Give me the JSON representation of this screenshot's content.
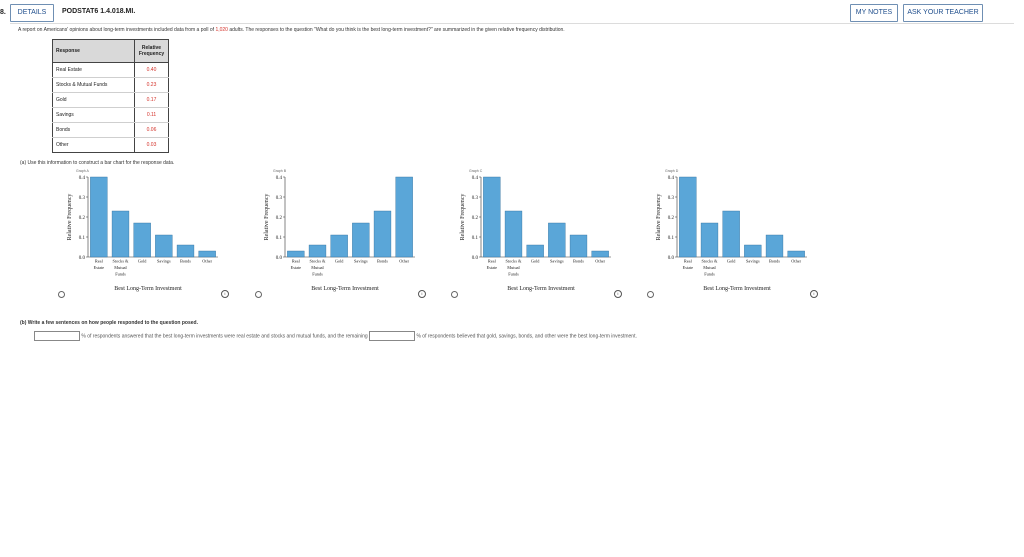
{
  "header": {
    "question_number": "8.",
    "details_label": "DETAILS",
    "question_code": "PODSTAT6 1.4.018.MI.",
    "my_notes_label": "MY NOTES",
    "ask_teacher_label": "ASK YOUR TEACHER"
  },
  "intro": {
    "before": "A report on Americans' opinions about long-term investments included data from a poll of ",
    "count": "1,020",
    "after": " adults. The responses to the question \"What do you think is the best long-term investment?\" are summarized in the given relative frequency distribution."
  },
  "table": {
    "header_response": "Response",
    "header_rf": "Relative Frequency",
    "rows": [
      {
        "response": "Real Estate",
        "value": "0.40"
      },
      {
        "response": "Stocks & Mutual Funds",
        "value": "0.23"
      },
      {
        "response": "Gold",
        "value": "0.17"
      },
      {
        "response": "Savings",
        "value": "0.11"
      },
      {
        "response": "Bonds",
        "value": "0.06"
      },
      {
        "response": "Other",
        "value": "0.03"
      }
    ]
  },
  "part_a": "(a)  Use this information to construct a bar chart for the response data.",
  "colors": {
    "bar": "#5aa6d8",
    "bar_stroke": "#2f6f9c",
    "accent_red": "#d4322a"
  },
  "chart_data": [
    {
      "type": "bar",
      "title": "Graph A",
      "categories": [
        "Real Estate",
        "Stocks & Mutual Funds",
        "Gold",
        "Savings",
        "Bonds",
        "Other"
      ],
      "values": [
        0.4,
        0.23,
        0.17,
        0.11,
        0.06,
        0.03
      ],
      "xlabel": "Best Long-Term Investment",
      "ylabel": "Relative Frequency",
      "ylim": [
        0,
        0.4
      ],
      "yticks": [
        "0.0",
        "0.1",
        "0.2",
        "0.3",
        "0.4"
      ]
    },
    {
      "type": "bar",
      "title": "Graph B",
      "categories": [
        "Real Estate",
        "Stocks & Mutual Funds",
        "Gold",
        "Savings",
        "Bonds",
        "Other"
      ],
      "values": [
        0.03,
        0.06,
        0.11,
        0.17,
        0.23,
        0.4
      ],
      "xlabel": "Best Long-Term Investment",
      "ylabel": "Relative Frequency",
      "ylim": [
        0,
        0.4
      ],
      "yticks": [
        "0.0",
        "0.1",
        "0.2",
        "0.3",
        "0.4"
      ]
    },
    {
      "type": "bar",
      "title": "Graph C",
      "categories": [
        "Real Estate",
        "Stocks & Mutual Funds",
        "Gold",
        "Savings",
        "Bonds",
        "Other"
      ],
      "values": [
        0.4,
        0.23,
        0.06,
        0.17,
        0.11,
        0.03
      ],
      "xlabel": "Best Long-Term Investment",
      "ylabel": "Relative Frequency",
      "ylim": [
        0,
        0.4
      ],
      "yticks": [
        "0.0",
        "0.1",
        "0.2",
        "0.3",
        "0.4"
      ]
    },
    {
      "type": "bar",
      "title": "Graph D",
      "categories": [
        "Real Estate",
        "Stocks & Mutual Funds",
        "Gold",
        "Savings",
        "Bonds",
        "Other"
      ],
      "values": [
        0.4,
        0.17,
        0.23,
        0.06,
        0.11,
        0.03
      ],
      "xlabel": "Best Long-Term Investment",
      "ylabel": "Relative Frequency",
      "ylim": [
        0,
        0.4
      ],
      "yticks": [
        "0.0",
        "0.1",
        "0.2",
        "0.3",
        "0.4"
      ]
    }
  ],
  "x_tick_labels": [
    [
      "Real",
      "Estate"
    ],
    [
      "Stocks &",
      "Mutual",
      "Funds"
    ],
    [
      "Gold"
    ],
    [
      "Savings"
    ],
    [
      "Bonds"
    ],
    [
      "Other"
    ]
  ],
  "info_icon": "info-icon",
  "part_b": {
    "prompt": "(b)  Write a few sentences on how people responded to the question posed.",
    "sentence_1": "% of respondents answered that the best long-term investments were real estate and stocks and mutual funds, and the remaining",
    "sentence_2": "% of respondents believed that gold, savings, bonds, and other were the best long-term investment."
  }
}
